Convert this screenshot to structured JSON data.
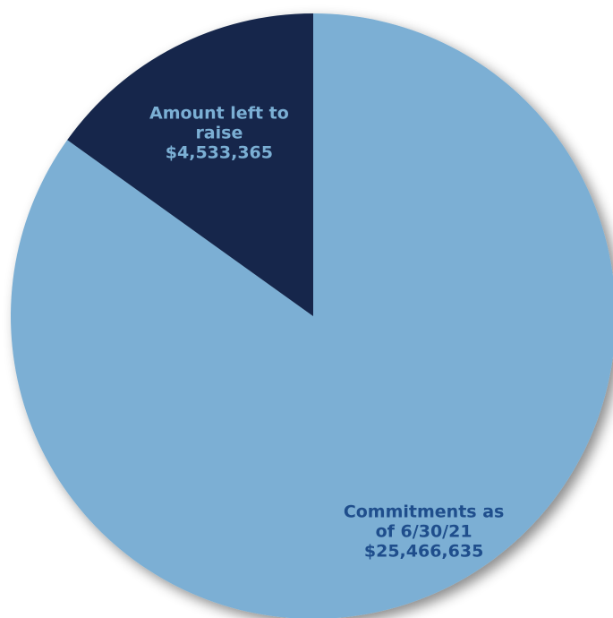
{
  "chart_data": {
    "type": "pie",
    "title": "",
    "start_angle_deg": 0,
    "direction": "clockwise",
    "legend": "none",
    "slices": [
      {
        "label_lines": [
          "Commitments as",
          "of 6/30/21",
          "$25,466,635"
        ],
        "value": 25466635,
        "color": "#7bafd4",
        "label_color": "#1f4e8c"
      },
      {
        "label_lines": [
          "Amount left to",
          "raise",
          "$4,533,365"
        ],
        "value": 4533365,
        "color": "#14284b",
        "label_color": "#7bafd4"
      }
    ]
  }
}
